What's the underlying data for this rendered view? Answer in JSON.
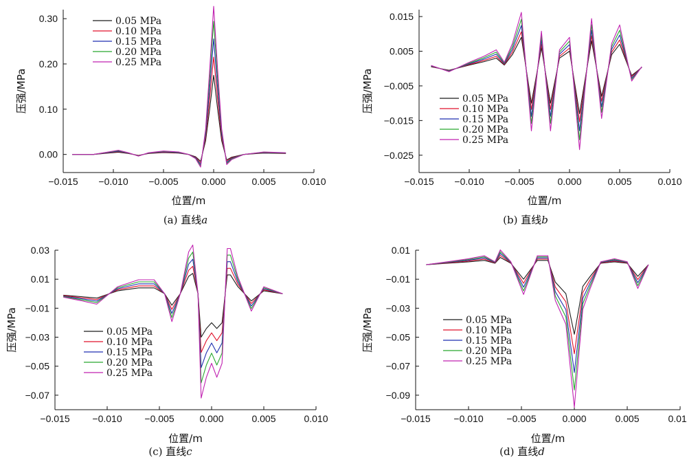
{
  "series_names": [
    "0.05 MPa",
    "0.10 MPa",
    "0.15 MPa",
    "0.20 MPa",
    "0.25 MPa"
  ],
  "series_colors": [
    "#1a1a1a",
    "#e0102a",
    "#1f2fb0",
    "#27a82e",
    "#c020b0"
  ],
  "chart_data": [
    {
      "type": "line",
      "caption_prefix": "(a) 直线",
      "caption_var": "a",
      "xlabel": "位置/m",
      "ylabel": "压强/MPa",
      "xlim": [
        -0.015,
        0.01
      ],
      "ylim": [
        -0.04,
        0.32
      ],
      "xticks": [
        -0.015,
        -0.01,
        -0.005,
        0.0,
        0.005,
        0.01
      ],
      "xtick_labels": [
        "−0.015",
        "−0.010",
        "−0.005",
        "0.000",
        "0.005",
        "0.010"
      ],
      "yticks": [
        0.0,
        0.1,
        0.2,
        0.3
      ],
      "ytick_labels": [
        "0.00",
        "0.10",
        "0.20",
        "0.30"
      ],
      "legend_position": "top-left",
      "x": [
        -0.0141,
        -0.012,
        -0.0105,
        -0.0095,
        -0.0085,
        -0.0075,
        -0.0065,
        -0.005,
        -0.0035,
        -0.0025,
        -0.0018,
        -0.0013,
        -0.0008,
        -0.0004,
        0.0,
        0.0004,
        0.0008,
        0.0013,
        0.0018,
        0.003,
        0.005,
        0.0072
      ],
      "base": [
        0.0,
        0.0,
        0.003,
        0.005,
        0.002,
        -0.002,
        0.002,
        0.004,
        0.003,
        0.0,
        -0.005,
        -0.015,
        0.03,
        0.1,
        0.175,
        0.1,
        0.03,
        -0.012,
        -0.006,
        0.0,
        0.003,
        0.002
      ],
      "scale": [
        1.0,
        1.23,
        1.46,
        1.68,
        1.87
      ],
      "series_peaks": [
        0.175,
        0.215,
        0.255,
        0.295,
        0.33
      ]
    },
    {
      "type": "line",
      "caption_prefix": "(b) 直线",
      "caption_var": "b",
      "xlabel": "位置/m",
      "ylabel": "压强/MPa",
      "xlim": [
        -0.015,
        0.01
      ],
      "ylim": [
        -0.03,
        0.017
      ],
      "xticks": [
        -0.015,
        -0.01,
        -0.005,
        0.0,
        0.005,
        0.01
      ],
      "xtick_labels": [
        "−0.015",
        "−0.010",
        "−0.005",
        "0.000",
        "0.005",
        "0.010"
      ],
      "yticks": [
        -0.025,
        -0.015,
        -0.005,
        0.005,
        0.015
      ],
      "ytick_labels": [
        "−0.025",
        "−0.015",
        "−0.005",
        "0.005",
        "0.015"
      ],
      "legend_position": "middle-left",
      "x": [
        -0.0138,
        -0.012,
        -0.01,
        -0.0085,
        -0.0073,
        -0.0065,
        -0.0057,
        -0.0048,
        -0.0038,
        -0.0028,
        -0.0019,
        -0.001,
        0.0,
        0.001,
        0.0015,
        0.0022,
        0.0032,
        0.0042,
        0.005,
        0.0062,
        0.0072
      ],
      "base": [
        0.0005,
        -0.0005,
        0.001,
        0.002,
        0.003,
        0.001,
        0.004,
        0.009,
        -0.01,
        0.006,
        -0.01,
        0.003,
        0.005,
        -0.013,
        -0.004,
        0.008,
        -0.008,
        0.004,
        0.007,
        -0.002,
        0.0003
      ],
      "scale": [
        1.0,
        1.18,
        1.38,
        1.58,
        1.8
      ]
    },
    {
      "type": "line",
      "caption_prefix": "(c) 直线",
      "caption_var": "c",
      "xlabel": "位置/m",
      "ylabel": "压强/MPa",
      "xlim": [
        -0.015,
        0.01
      ],
      "ylim": [
        -0.08,
        0.03
      ],
      "xticks": [
        -0.015,
        -0.01,
        -0.005,
        0.0,
        0.005,
        0.01
      ],
      "xtick_labels": [
        "−0.015",
        "−0.010",
        "−0.005",
        "0.000",
        "0.005",
        "0.010"
      ],
      "yticks": [
        -0.07,
        -0.05,
        -0.03,
        -0.01,
        0.01,
        0.03
      ],
      "ytick_labels": [
        "−0.07",
        "−0.05",
        "−0.03",
        "−0.01",
        "0.01",
        "0.03"
      ],
      "legend_position": "bottom-left",
      "x": [
        -0.0142,
        -0.0125,
        -0.011,
        -0.009,
        -0.007,
        -0.0055,
        -0.0045,
        -0.0038,
        -0.003,
        -0.0022,
        -0.0018,
        -0.0013,
        -0.001,
        -0.0005,
        0.0,
        0.0005,
        0.001,
        0.0015,
        0.0018,
        0.0025,
        0.0038,
        0.005,
        0.0068
      ],
      "base": [
        -0.001,
        -0.002,
        -0.003,
        0.002,
        0.004,
        0.004,
        0.0,
        -0.008,
        0.0,
        0.012,
        0.014,
        0.0,
        -0.03,
        -0.024,
        -0.02,
        -0.024,
        -0.02,
        0.013,
        0.013,
        0.005,
        -0.005,
        0.002,
        0.0
      ],
      "scale": [
        1.0,
        1.35,
        1.7,
        2.05,
        2.4
      ]
    },
    {
      "type": "line",
      "caption_prefix": "(d) 直线",
      "caption_var": "d",
      "xlabel": "位置/m",
      "ylabel": "压强/MPa",
      "xlim": [
        -0.015,
        0.01
      ],
      "ylim": [
        -0.1,
        0.01
      ],
      "xticks": [
        -0.015,
        -0.01,
        -0.005,
        0.0,
        0.005,
        0.01
      ],
      "xtick_labels": [
        "−0.015",
        "−0.010",
        "−0.005",
        "0.000",
        "0.005",
        "0.010"
      ],
      "yticks": [
        -0.09,
        -0.07,
        -0.05,
        -0.03,
        -0.01,
        0.01
      ],
      "ytick_labels": [
        "−0.09",
        "−0.07",
        "−0.05",
        "−0.03",
        "−0.01",
        "0.01"
      ],
      "legend_position": "middle-left",
      "x": [
        -0.014,
        -0.012,
        -0.01,
        -0.0085,
        -0.0075,
        -0.007,
        -0.006,
        -0.0048,
        -0.0035,
        -0.0025,
        -0.0018,
        -0.0008,
        0.0,
        0.0008,
        0.0015,
        0.0025,
        0.0038,
        0.005,
        0.006,
        0.007
      ],
      "base": [
        0.0,
        0.001,
        0.002,
        0.003,
        0.001,
        0.005,
        0.001,
        -0.01,
        0.003,
        0.003,
        -0.012,
        -0.02,
        -0.048,
        -0.015,
        -0.008,
        0.001,
        0.002,
        0.001,
        -0.008,
        0.0
      ],
      "scale": [
        1.0,
        1.28,
        1.55,
        1.8,
        2.05
      ]
    }
  ]
}
